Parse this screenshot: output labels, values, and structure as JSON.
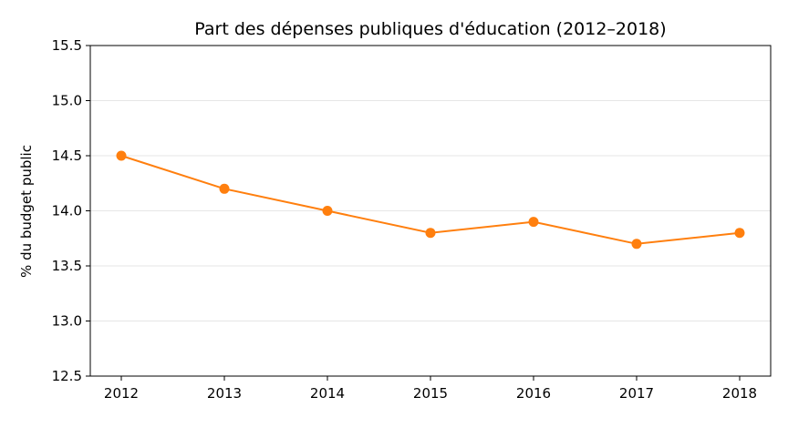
{
  "chart_data": {
    "type": "line",
    "title": "Part des dépenses publiques d'éducation (2012–2018)",
    "xlabel": "",
    "ylabel": "% du budget public",
    "x": [
      "2012",
      "2013",
      "2014",
      "2015",
      "2016",
      "2017",
      "2018"
    ],
    "series": [
      {
        "name": "Part des dépenses publiques d'éducation",
        "values": [
          14.5,
          14.2,
          14.0,
          13.8,
          13.9,
          13.7,
          13.8
        ],
        "color": "#ff7f0e"
      }
    ],
    "ylim": [
      12.5,
      15.5
    ],
    "yticks": [
      "12.5",
      "13.0",
      "13.5",
      "14.0",
      "14.5",
      "15.0",
      "15.5"
    ],
    "grid": "horizontal",
    "legend": "none"
  }
}
